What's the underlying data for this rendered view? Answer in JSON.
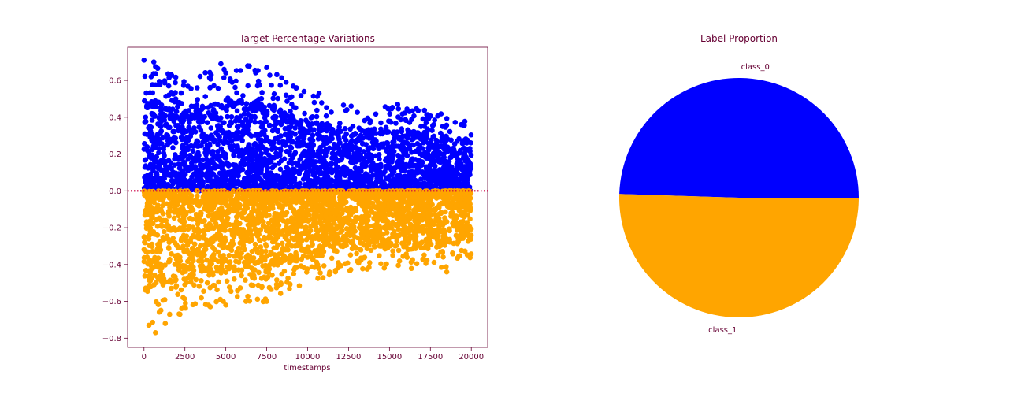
{
  "chart_data": [
    {
      "type": "scatter",
      "title": "Target Percentage Variations",
      "xlabel": "timestamps",
      "ylabel": "",
      "xlim": [
        -1000,
        21000
      ],
      "ylim": [
        -0.85,
        0.78
      ],
      "xticks": [
        0,
        2500,
        5000,
        7500,
        10000,
        12500,
        15000,
        17500,
        20000
      ],
      "xtick_labels": [
        "0",
        "2500",
        "5000",
        "7500",
        "10000",
        "12500",
        "15000",
        "17500",
        "20000"
      ],
      "yticks": [
        -0.8,
        -0.6,
        -0.4,
        -0.2,
        0.0,
        0.2,
        0.4,
        0.6
      ],
      "ytick_labels": [
        "−0.8",
        "−0.6",
        "−0.4",
        "−0.2",
        "0.0",
        "0.2",
        "0.4",
        "0.6"
      ],
      "grid": false,
      "n_points": 20000,
      "reference_line": {
        "y": 0.0,
        "color": "#cc0044",
        "style": "dotted"
      },
      "series": [
        {
          "color": "#0000ff",
          "x_range": [
            0,
            20000
          ],
          "y_range": [
            0.0,
            0.71
          ],
          "upper_envelope": [
            [
              0,
              0.71
            ],
            [
              2500,
              0.6
            ],
            [
              5000,
              0.69
            ],
            [
              7500,
              0.67
            ],
            [
              10000,
              0.53
            ],
            [
              12500,
              0.47
            ],
            [
              15000,
              0.47
            ],
            [
              17500,
              0.44
            ],
            [
              20000,
              0.37
            ]
          ],
          "highlighted_points": [
            [
              0,
              0.71
            ],
            [
              600,
              0.7
            ],
            [
              4700,
              0.69
            ],
            [
              7500,
              0.67
            ],
            [
              10700,
              0.53
            ],
            [
              15500,
              0.47
            ]
          ]
        },
        {
          "color": "#ffa500",
          "x_range": [
            0,
            20000
          ],
          "y_range": [
            -0.77,
            0.0
          ],
          "lower_envelope": [
            [
              0,
              -0.77
            ],
            [
              2500,
              -0.67
            ],
            [
              5000,
              -0.62
            ],
            [
              7500,
              -0.6
            ],
            [
              10000,
              -0.5
            ],
            [
              12500,
              -0.45
            ],
            [
              15000,
              -0.42
            ],
            [
              17500,
              -0.44
            ],
            [
              20000,
              -0.37
            ]
          ],
          "highlighted_points": [
            [
              300,
              -0.73
            ],
            [
              700,
              -0.77
            ],
            [
              1300,
              -0.72
            ],
            [
              2200,
              -0.67
            ],
            [
              5000,
              -0.62
            ],
            [
              7500,
              -0.6
            ],
            [
              18500,
              -0.44
            ]
          ]
        }
      ]
    },
    {
      "type": "pie",
      "title": "Label Proportion",
      "labels": [
        "class_0",
        "class_1"
      ],
      "values": [
        0.495,
        0.505
      ],
      "colors": [
        "#0000ff",
        "#ffa500"
      ],
      "start_angle_deg": 0
    }
  ]
}
